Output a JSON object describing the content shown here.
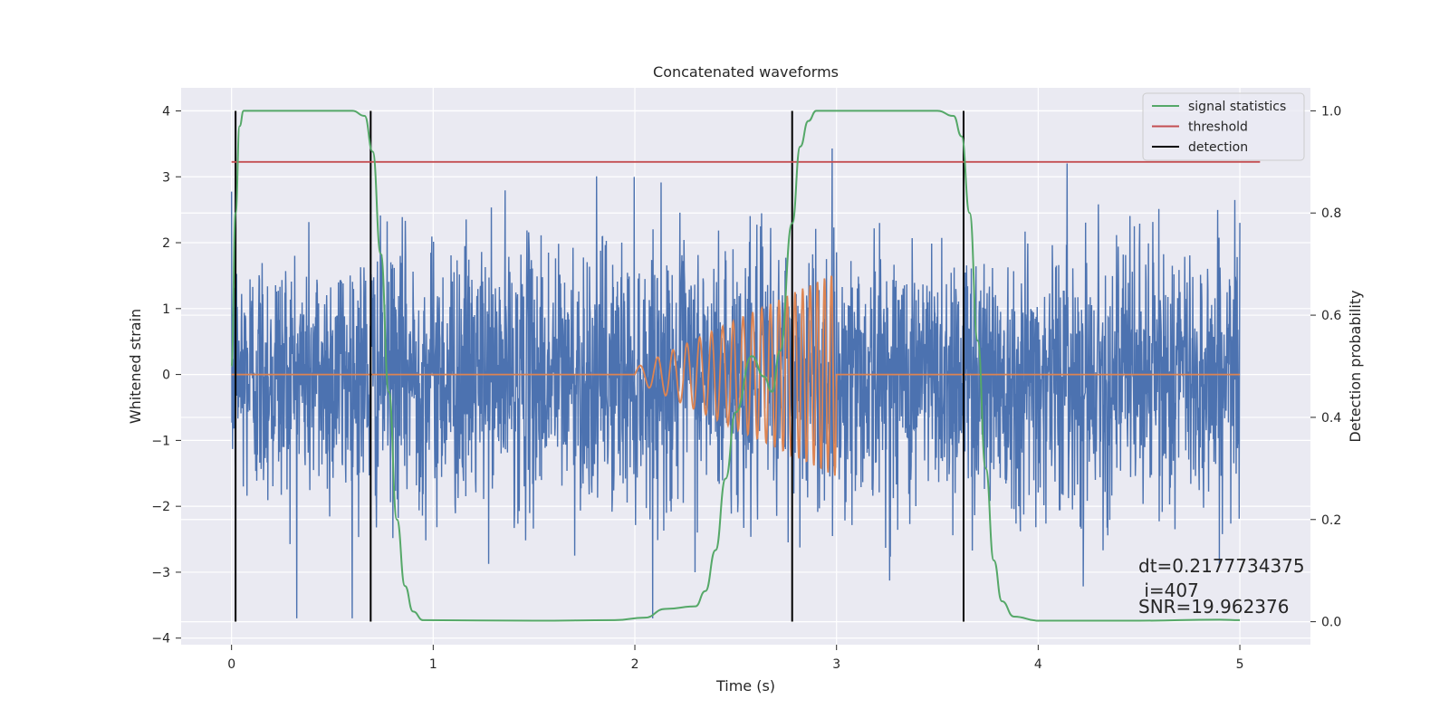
{
  "chart_data": {
    "type": "line",
    "title": "Concatenated waveforms",
    "xlabel": "Time (s)",
    "ylabel": "Whitened strain",
    "y2label": "Detection probability",
    "xlim": [
      -0.25,
      5.35
    ],
    "ylim": [
      -4.1,
      4.35
    ],
    "y2lim": [
      -0.045,
      1.045
    ],
    "xticks": [
      0,
      1,
      2,
      3,
      4,
      5
    ],
    "yticks": [
      -4,
      -3,
      -2,
      -1,
      0,
      1,
      2,
      3,
      4
    ],
    "y2ticks": [
      0.0,
      0.2,
      0.4,
      0.6,
      0.8,
      1.0
    ],
    "grid": true,
    "legend_position": "top-right",
    "legend": [
      {
        "label": "signal statistics",
        "color": "#55a868"
      },
      {
        "label": "threshold",
        "color": "#c44e52"
      },
      {
        "label": "detection",
        "color": "#000000"
      }
    ],
    "colors": {
      "strain": "#4c72b0",
      "template": "#dd8452",
      "statistic": "#55a868",
      "threshold": "#c44e52",
      "detection": "#000000",
      "background": "#eaeaf2",
      "grid": "#ffffff"
    },
    "strain_noise": {
      "x_start": 0.0,
      "x_end": 5.0,
      "amplitude_sigma": 1.0
    },
    "template": {
      "x_start": 2.0,
      "x_end": 3.0,
      "amp_start": 0.1,
      "amp_end": 1.55,
      "freq_start": 10,
      "freq_end": 30
    },
    "threshold": {
      "value": 0.9,
      "x_start": 0.0,
      "x_end": 5.1
    },
    "detections": [
      0.02,
      0.69,
      2.78,
      3.63
    ],
    "detection_line_y": [
      -3.75,
      4.0
    ],
    "statistic_series": {
      "x": [
        0.0,
        0.02,
        0.04,
        0.06,
        0.1,
        0.3,
        0.6,
        0.66,
        0.7,
        0.74,
        0.78,
        0.82,
        0.86,
        0.9,
        0.95,
        1.5,
        1.9,
        2.05,
        2.15,
        2.3,
        2.35,
        2.4,
        2.45,
        2.5,
        2.58,
        2.64,
        2.68,
        2.72,
        2.78,
        2.82,
        2.86,
        2.9,
        3.0,
        3.5,
        3.58,
        3.62,
        3.66,
        3.7,
        3.74,
        3.78,
        3.82,
        3.88,
        4.0,
        4.5,
        4.9,
        5.0
      ],
      "y": [
        0.5,
        0.8,
        0.97,
        1.0,
        1.0,
        1.0,
        1.0,
        0.99,
        0.92,
        0.72,
        0.45,
        0.2,
        0.07,
        0.02,
        0.003,
        0.002,
        0.003,
        0.008,
        0.025,
        0.03,
        0.06,
        0.14,
        0.28,
        0.41,
        0.52,
        0.48,
        0.45,
        0.53,
        0.78,
        0.93,
        0.98,
        1.0,
        1.0,
        1.0,
        0.99,
        0.95,
        0.8,
        0.55,
        0.3,
        0.12,
        0.04,
        0.01,
        0.002,
        0.002,
        0.004,
        0.003
      ]
    },
    "annotations": {
      "dt": "dt=0.2177734375",
      "i": " i=407",
      "snr": "SNR=19.962376"
    }
  }
}
